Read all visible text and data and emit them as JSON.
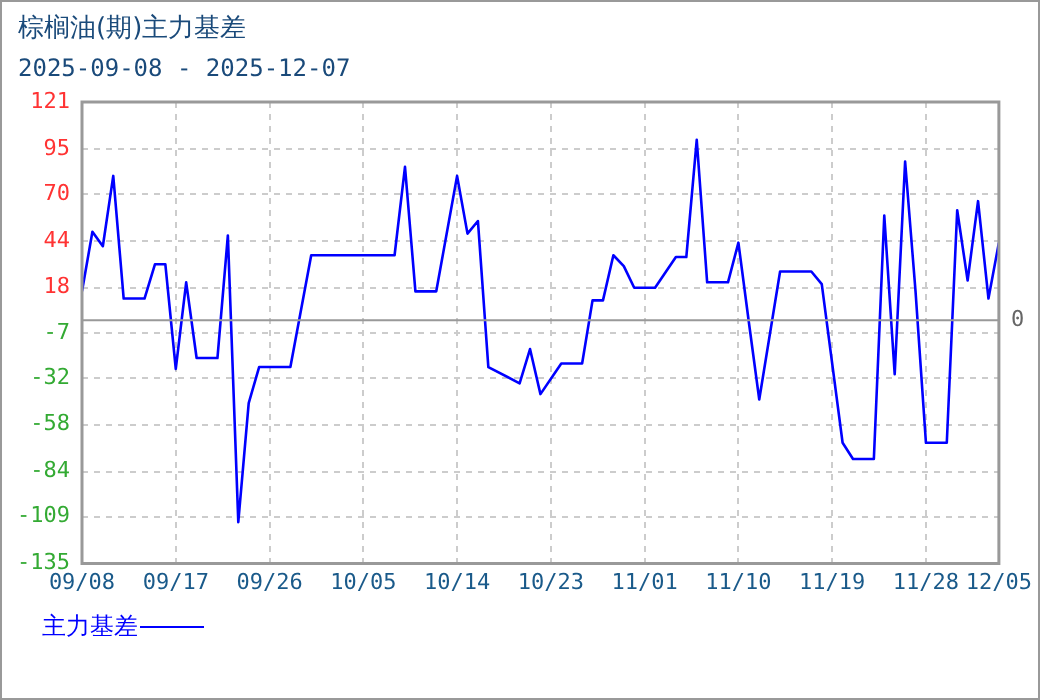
{
  "chart_data": {
    "type": "line",
    "title": "棕榈油(期)主力基差",
    "subtitle": "2025-09-08 - 2025-12-07",
    "x": [
      "2025-09-08",
      "2025-09-09",
      "2025-09-10",
      "2025-09-11",
      "2025-09-12",
      "2025-09-14",
      "2025-09-15",
      "2025-09-16",
      "2025-09-17",
      "2025-09-18",
      "2025-09-19",
      "2025-09-21",
      "2025-09-22",
      "2025-09-23",
      "2025-09-24",
      "2025-09-25",
      "2025-09-28",
      "2025-09-30",
      "2025-10-08",
      "2025-10-09",
      "2025-10-10",
      "2025-10-12",
      "2025-10-14",
      "2025-10-15",
      "2025-10-16",
      "2025-10-17",
      "2025-10-20",
      "2025-10-21",
      "2025-10-22",
      "2025-10-24",
      "2025-10-26",
      "2025-10-27",
      "2025-10-28",
      "2025-10-29",
      "2025-10-30",
      "2025-10-31",
      "2025-11-02",
      "2025-11-04",
      "2025-11-05",
      "2025-11-06",
      "2025-11-07",
      "2025-11-09",
      "2025-11-10",
      "2025-11-11",
      "2025-11-12",
      "2025-11-14",
      "2025-11-17",
      "2025-11-18",
      "2025-11-20",
      "2025-11-21",
      "2025-11-23",
      "2025-11-24",
      "2025-11-25",
      "2025-11-26",
      "2025-11-27",
      "2025-11-28",
      "2025-11-30",
      "2025-12-01",
      "2025-12-02",
      "2025-12-03",
      "2025-12-04",
      "2025-12-05"
    ],
    "series": [
      {
        "name": "主力基差",
        "color": "#0000ff",
        "values": [
          16,
          49,
          41,
          80,
          12,
          12,
          31,
          31,
          -27,
          21,
          -21,
          -21,
          47,
          -112,
          -46,
          -26,
          -26,
          36,
          36,
          85,
          16,
          16,
          80,
          48,
          55,
          -26,
          -35,
          -16,
          -41,
          -24,
          -24,
          11,
          11,
          36,
          30,
          18,
          18,
          35,
          35,
          100,
          21,
          21,
          43,
          -1,
          -44,
          27,
          27,
          20,
          -68,
          -77,
          -77,
          58,
          -30,
          88,
          16,
          -68,
          -68,
          61,
          22,
          66,
          12,
          43
        ]
      }
    ],
    "xlim": [
      "2025-09-08",
      "2025-12-05"
    ],
    "xticks": [
      {
        "value": "2025-09-08",
        "label": "09/08"
      },
      {
        "value": "2025-09-17",
        "label": "09/17"
      },
      {
        "value": "2025-09-26",
        "label": "09/26"
      },
      {
        "value": "2025-10-05",
        "label": "10/05"
      },
      {
        "value": "2025-10-14",
        "label": "10/14"
      },
      {
        "value": "2025-10-23",
        "label": "10/23"
      },
      {
        "value": "2025-11-01",
        "label": "11/01"
      },
      {
        "value": "2025-11-10",
        "label": "11/10"
      },
      {
        "value": "2025-11-19",
        "label": "11/19"
      },
      {
        "value": "2025-11-28",
        "label": "11/28"
      },
      {
        "value": "2025-12-05",
        "label": "12/05"
      }
    ],
    "ylim": [
      -135,
      121
    ],
    "yticks": [
      -135,
      -109,
      -84,
      -58,
      -32,
      -7,
      18,
      44,
      70,
      95,
      121
    ],
    "ref_lines": [
      {
        "axis": "y",
        "value": 0,
        "label": "0",
        "color": "#999999"
      }
    ],
    "grid": true,
    "legend": "bottom left",
    "marker": "none",
    "line_style": "solid"
  }
}
